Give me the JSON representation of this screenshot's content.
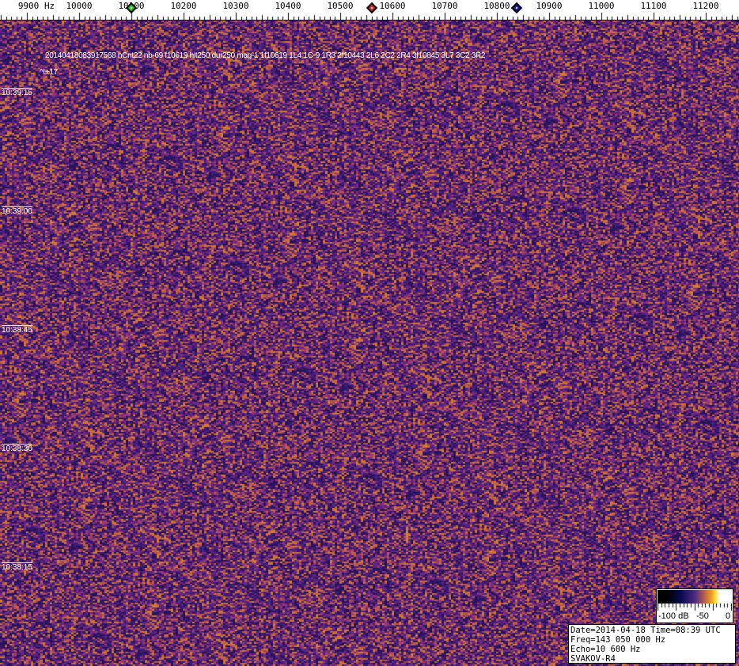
{
  "chart_data": {
    "type": "heatmap",
    "xaxis": {
      "unit": "Hz",
      "ticks": [
        "9900",
        "10000",
        "10100",
        "10200",
        "10300",
        "10400",
        "10500",
        "10600",
        "10700",
        "10800",
        "10900",
        "11000",
        "11100",
        "11200"
      ],
      "unit_label": "Hz"
    },
    "yaxis": {
      "ticks": [
        "10:39:15",
        "10:39:00",
        "10:38:45",
        "10:38:30",
        "10:38:15"
      ]
    },
    "colorbar": {
      "ticks": [
        "-100 dB",
        "-50",
        "0"
      ],
      "range_db": [
        -100,
        0
      ],
      "colors": [
        "#000000",
        "#0a0a50",
        "#4a2a80",
        "#b05a50",
        "#f0a020",
        "#ffe040",
        "#ffffff"
      ]
    },
    "markers": [
      {
        "color": "#22cc22"
      },
      {
        "color": "#dd2222"
      },
      {
        "color": "#1a1aaa"
      }
    ],
    "header_line": "20140418083917568 hCnt22 nb-69 f10619 hit250 dur250 mag-1 1f10619 1L4 1C-9 1R3 2f10443 2L6 2C2 2R4 3f10845 3L7 3C2 3R2",
    "sub_line": "^t+17"
  },
  "info": {
    "date_time": "Date=2014-04-18 Time=08:39 UTC",
    "freq": "Freq=143 050 000 Hz",
    "echo": "Echo=10 600 Hz",
    "station": "SVAKOV-R4"
  }
}
